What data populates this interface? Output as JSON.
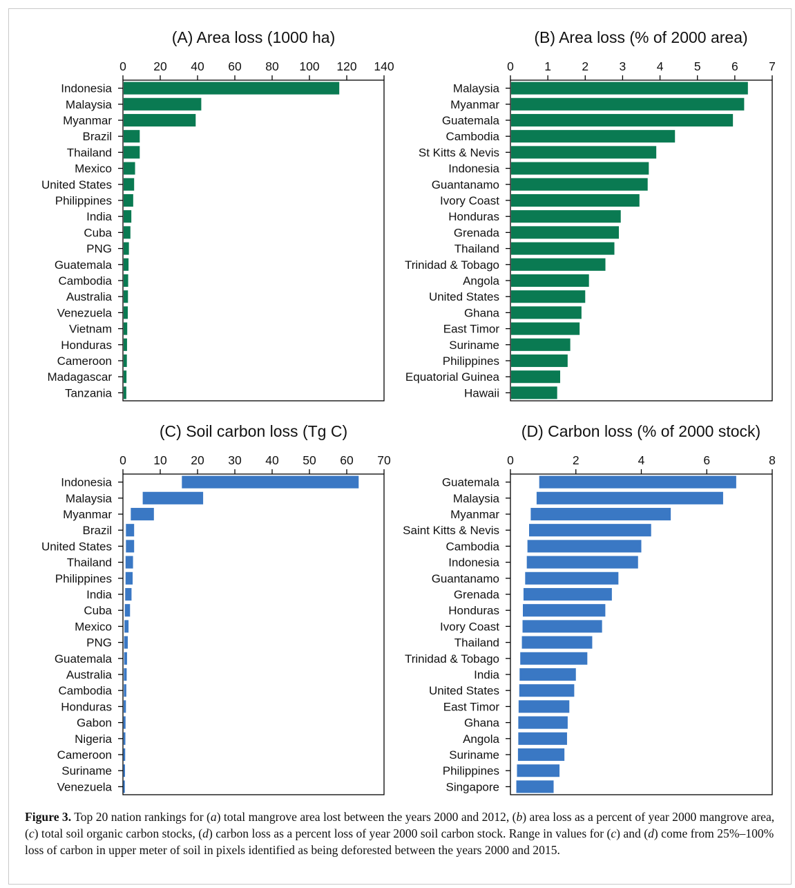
{
  "colors": {
    "green": "#0a7a52",
    "blue": "#3a78c4",
    "axis": "#000000"
  },
  "chart_data": [
    {
      "type": "bar",
      "orientation": "horizontal",
      "title": "(A) Area loss (1000 ha)",
      "xlim": [
        0,
        140
      ],
      "ticks": [
        0,
        20,
        40,
        60,
        80,
        100,
        120,
        140
      ],
      "x_axis_position": "top",
      "color": "#0a7a52",
      "categories": [
        "Indonesia",
        "Malaysia",
        "Myanmar",
        "Brazil",
        "Thailand",
        "Mexico",
        "United States",
        "Philippines",
        "India",
        "Cuba",
        "PNG",
        "Guatemala",
        "Cambodia",
        "Australia",
        "Venezuela",
        "Vietnam",
        "Honduras",
        "Cameroon",
        "Madagascar",
        "Tanzania"
      ],
      "values": [
        116,
        42,
        39,
        9,
        9,
        6.5,
        6,
        5.5,
        4.5,
        4,
        3.2,
        3,
        2.8,
        2.7,
        2.6,
        2.3,
        2.2,
        2.1,
        1.9,
        1.8
      ]
    },
    {
      "type": "bar",
      "orientation": "horizontal",
      "title": "(B) Area loss (% of 2000 area)",
      "xlim": [
        0,
        7
      ],
      "ticks": [
        0,
        1,
        2,
        3,
        4,
        5,
        6,
        7
      ],
      "x_axis_position": "top",
      "color": "#0a7a52",
      "categories": [
        "Malaysia",
        "Myanmar",
        "Guatemala",
        "Cambodia",
        "St Kitts & Nevis",
        "Indonesia",
        "Guantanamo",
        "Ivory Coast",
        "Honduras",
        "Grenada",
        "Thailand",
        "Trinidad & Tobago",
        "Angola",
        "United States",
        "Ghana",
        "East Timor",
        "Suriname",
        "Philippines",
        "Equatorial Guinea",
        "Hawaii"
      ],
      "values": [
        6.35,
        6.25,
        5.95,
        4.4,
        3.9,
        3.7,
        3.67,
        3.45,
        2.95,
        2.9,
        2.78,
        2.54,
        2.1,
        2.0,
        1.9,
        1.85,
        1.6,
        1.53,
        1.33,
        1.25
      ]
    },
    {
      "type": "bar",
      "orientation": "horizontal",
      "title": "(C) Soil carbon loss (Tg C)",
      "xlim": [
        0,
        70
      ],
      "ticks": [
        0,
        10,
        20,
        30,
        40,
        50,
        60,
        70
      ],
      "x_axis_position": "top",
      "color": "#3a78c4",
      "range_bars": true,
      "categories": [
        "Indonesia",
        "Malaysia",
        "Myanmar",
        "Brazil",
        "United States",
        "Thailand",
        "Philippines",
        "India",
        "Cuba",
        "Mexico",
        "PNG",
        "Guatemala",
        "Australia",
        "Cambodia",
        "Honduras",
        "Gabon",
        "Nigeria",
        "Cameroon",
        "Suriname",
        "Venezuela"
      ],
      "low": [
        15.8,
        5.3,
        2.1,
        0.8,
        0.8,
        0.7,
        0.7,
        0.6,
        0.5,
        0.4,
        0.3,
        0.3,
        0.25,
        0.25,
        0.2,
        0.15,
        0.15,
        0.12,
        0.12,
        0.1
      ],
      "high": [
        63.2,
        21.5,
        8.3,
        3.0,
        3.0,
        2.7,
        2.6,
        2.3,
        1.9,
        1.5,
        1.3,
        1.1,
        1.0,
        0.9,
        0.8,
        0.7,
        0.65,
        0.6,
        0.55,
        0.5
      ]
    },
    {
      "type": "bar",
      "orientation": "horizontal",
      "title": "(D) Carbon loss (% of 2000 stock)",
      "xlim": [
        0,
        8
      ],
      "ticks": [
        0,
        2,
        4,
        6,
        8
      ],
      "x_axis_position": "top",
      "color": "#3a78c4",
      "range_bars": true,
      "categories": [
        "Guatemala",
        "Malaysia",
        "Myanmar",
        "Saint Kitts & Nevis",
        "Cambodia",
        "Indonesia",
        "Guantanamo",
        "Grenada",
        "Honduras",
        "Ivory Coast",
        "Thailand",
        "Trinidad & Tobago",
        "India",
        "United States",
        "East Timor",
        "Ghana",
        "Angola",
        "Suriname",
        "Philippines",
        "Singapore"
      ],
      "low": [
        0.88,
        0.8,
        0.62,
        0.57,
        0.52,
        0.5,
        0.45,
        0.4,
        0.38,
        0.37,
        0.35,
        0.3,
        0.28,
        0.27,
        0.25,
        0.24,
        0.24,
        0.23,
        0.2,
        0.18
      ],
      "high": [
        6.9,
        6.5,
        4.9,
        4.3,
        4.0,
        3.9,
        3.3,
        3.1,
        2.9,
        2.8,
        2.5,
        2.35,
        2.0,
        1.95,
        1.8,
        1.75,
        1.73,
        1.65,
        1.5,
        1.32
      ]
    }
  ],
  "caption": {
    "label": "Figure 3.",
    "parts": [
      " Top 20 nation rankings for (",
      "a",
      ") total mangrove area lost between the years 2000 and 2012, (",
      "b",
      ") area loss as a percent of year 2000 mangrove area, (",
      "c",
      ") total soil organic carbon stocks, (",
      "d",
      ") carbon loss as a percent loss of year 2000 soil carbon stock. Range in values for (",
      "c",
      ") and (",
      "d",
      ") come from 25%–100% loss of carbon in upper meter of soil in pixels identified as being deforested between the years 2000 and 2015."
    ]
  }
}
